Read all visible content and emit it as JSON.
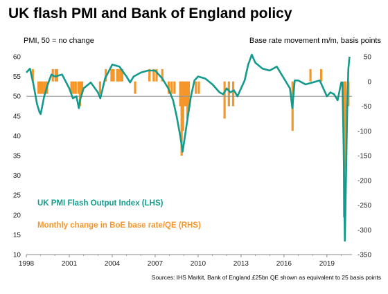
{
  "title": "UK flash PMI and Bank of England policy",
  "left_axis_note": "PMI, 50 = no change",
  "right_axis_note": "Base rate movement m/m, basis points",
  "source_note": "Sources: IHS Markit, Bank of England.£25bn QE shown as equivalent to 25 basis points",
  "colors": {
    "pmi_line": "#139a8c",
    "base_rate_bars": "#f5962a",
    "reference_line": "#9a9a9a",
    "axis": "#888888"
  },
  "chart_data": {
    "type": "line",
    "title": "UK flash PMI and Bank of England policy",
    "reference_line": {
      "axis": "left",
      "value": 50,
      "label": "50 = no change"
    },
    "x_axis": {
      "ticks": [
        "1998",
        "2001",
        "2004",
        "2007",
        "2010",
        "2013",
        "2016",
        "2019"
      ],
      "range": [
        1998.0,
        2020.75
      ]
    },
    "y_left": {
      "label": "PMI, 50 = no change",
      "range": [
        10,
        60
      ],
      "ticks": [
        10,
        15,
        20,
        25,
        30,
        35,
        40,
        45,
        50,
        55,
        60
      ]
    },
    "y_right": {
      "label": "Base rate movement m/m, basis points",
      "range": [
        -350,
        50
      ],
      "ticks": [
        50,
        0,
        -50,
        -100,
        -150,
        -200,
        -250,
        -300,
        -350
      ]
    },
    "series": [
      {
        "name": "UK PMI Flash Output Index (LHS)",
        "type": "line",
        "axis": "left",
        "color": "#139a8c",
        "x": [
          1998.0,
          1998.25,
          1998.5,
          1998.75,
          1998.92,
          1999.0,
          1999.25,
          1999.5,
          1999.75,
          2000.0,
          2000.5,
          2001.0,
          2001.25,
          2001.5,
          2001.67,
          2001.75,
          2002.0,
          2002.5,
          2003.0,
          2003.17,
          2003.5,
          2004.0,
          2004.5,
          2005.0,
          2005.25,
          2005.5,
          2006.0,
          2006.5,
          2007.0,
          2007.5,
          2007.92,
          2008.25,
          2008.5,
          2008.75,
          2008.92,
          2009.0,
          2009.25,
          2009.5,
          2009.75,
          2010.0,
          2010.5,
          2011.0,
          2011.5,
          2011.75,
          2012.0,
          2012.25,
          2012.5,
          2012.75,
          2013.0,
          2013.25,
          2013.5,
          2013.75,
          2014.0,
          2014.5,
          2015.0,
          2015.5,
          2016.0,
          2016.42,
          2016.58,
          2016.75,
          2017.0,
          2017.5,
          2018.0,
          2018.5,
          2019.0,
          2019.25,
          2019.5,
          2019.75,
          2020.0,
          2020.08,
          2020.17,
          2020.25,
          2020.33,
          2020.42,
          2020.5,
          2020.58
        ],
        "y": [
          56.0,
          57.0,
          53.0,
          48.0,
          46.0,
          45.5,
          50.0,
          53.0,
          55.5,
          55.0,
          55.5,
          52.0,
          49.5,
          50.0,
          47.0,
          49.0,
          52.0,
          53.5,
          51.0,
          49.5,
          54.5,
          58.0,
          57.5,
          55.0,
          53.5,
          55.0,
          56.0,
          56.5,
          56.5,
          54.5,
          52.0,
          49.0,
          45.0,
          40.0,
          36.0,
          38.0,
          44.0,
          50.0,
          54.0,
          55.0,
          54.5,
          53.0,
          51.0,
          50.5,
          52.0,
          51.0,
          51.5,
          50.0,
          52.0,
          54.0,
          58.0,
          60.5,
          58.5,
          57.0,
          56.5,
          57.5,
          54.5,
          52.0,
          47.0,
          54.0,
          54.0,
          53.0,
          53.5,
          54.0,
          50.0,
          51.0,
          50.5,
          49.0,
          53.5,
          53.5,
          37.0,
          13.5,
          28.5,
          47.0,
          57.0,
          60.0
        ]
      },
      {
        "name": "Monthly change in BoE base rate/QE (RHS)",
        "type": "bar",
        "axis": "right",
        "color": "#f5962a",
        "x": [
          1998.45,
          1998.85,
          1998.95,
          1999.05,
          1999.15,
          1999.3,
          1999.45,
          1999.85,
          2000.05,
          2000.15,
          2001.15,
          2001.3,
          2001.45,
          2001.65,
          2001.75,
          2001.9,
          2003.15,
          2003.55,
          2003.95,
          2004.1,
          2004.35,
          2004.45,
          2004.6,
          2004.7,
          2005.6,
          2006.6,
          2006.9,
          2007.1,
          2007.5,
          2007.95,
          2008.15,
          2008.35,
          2008.75,
          2008.85,
          2008.95,
          2009.05,
          2009.15,
          2009.25,
          2009.35,
          2009.85,
          2010.05,
          2011.85,
          2012.15,
          2012.45,
          2016.6,
          2017.85,
          2018.6,
          2020.2,
          2020.3,
          2020.5
        ],
        "y": [
          25,
          -25,
          -25,
          -25,
          -25,
          -25,
          -25,
          25,
          25,
          25,
          -25,
          -25,
          -25,
          -25,
          -50,
          -25,
          -25,
          25,
          25,
          25,
          25,
          25,
          25,
          25,
          -25,
          25,
          25,
          25,
          25,
          -25,
          -25,
          -25,
          -50,
          -150,
          -100,
          -50,
          -50,
          -75,
          -50,
          -25,
          -25,
          -75,
          -50,
          -50,
          -100,
          25,
          25,
          -275,
          -175,
          -50
        ]
      }
    ]
  }
}
